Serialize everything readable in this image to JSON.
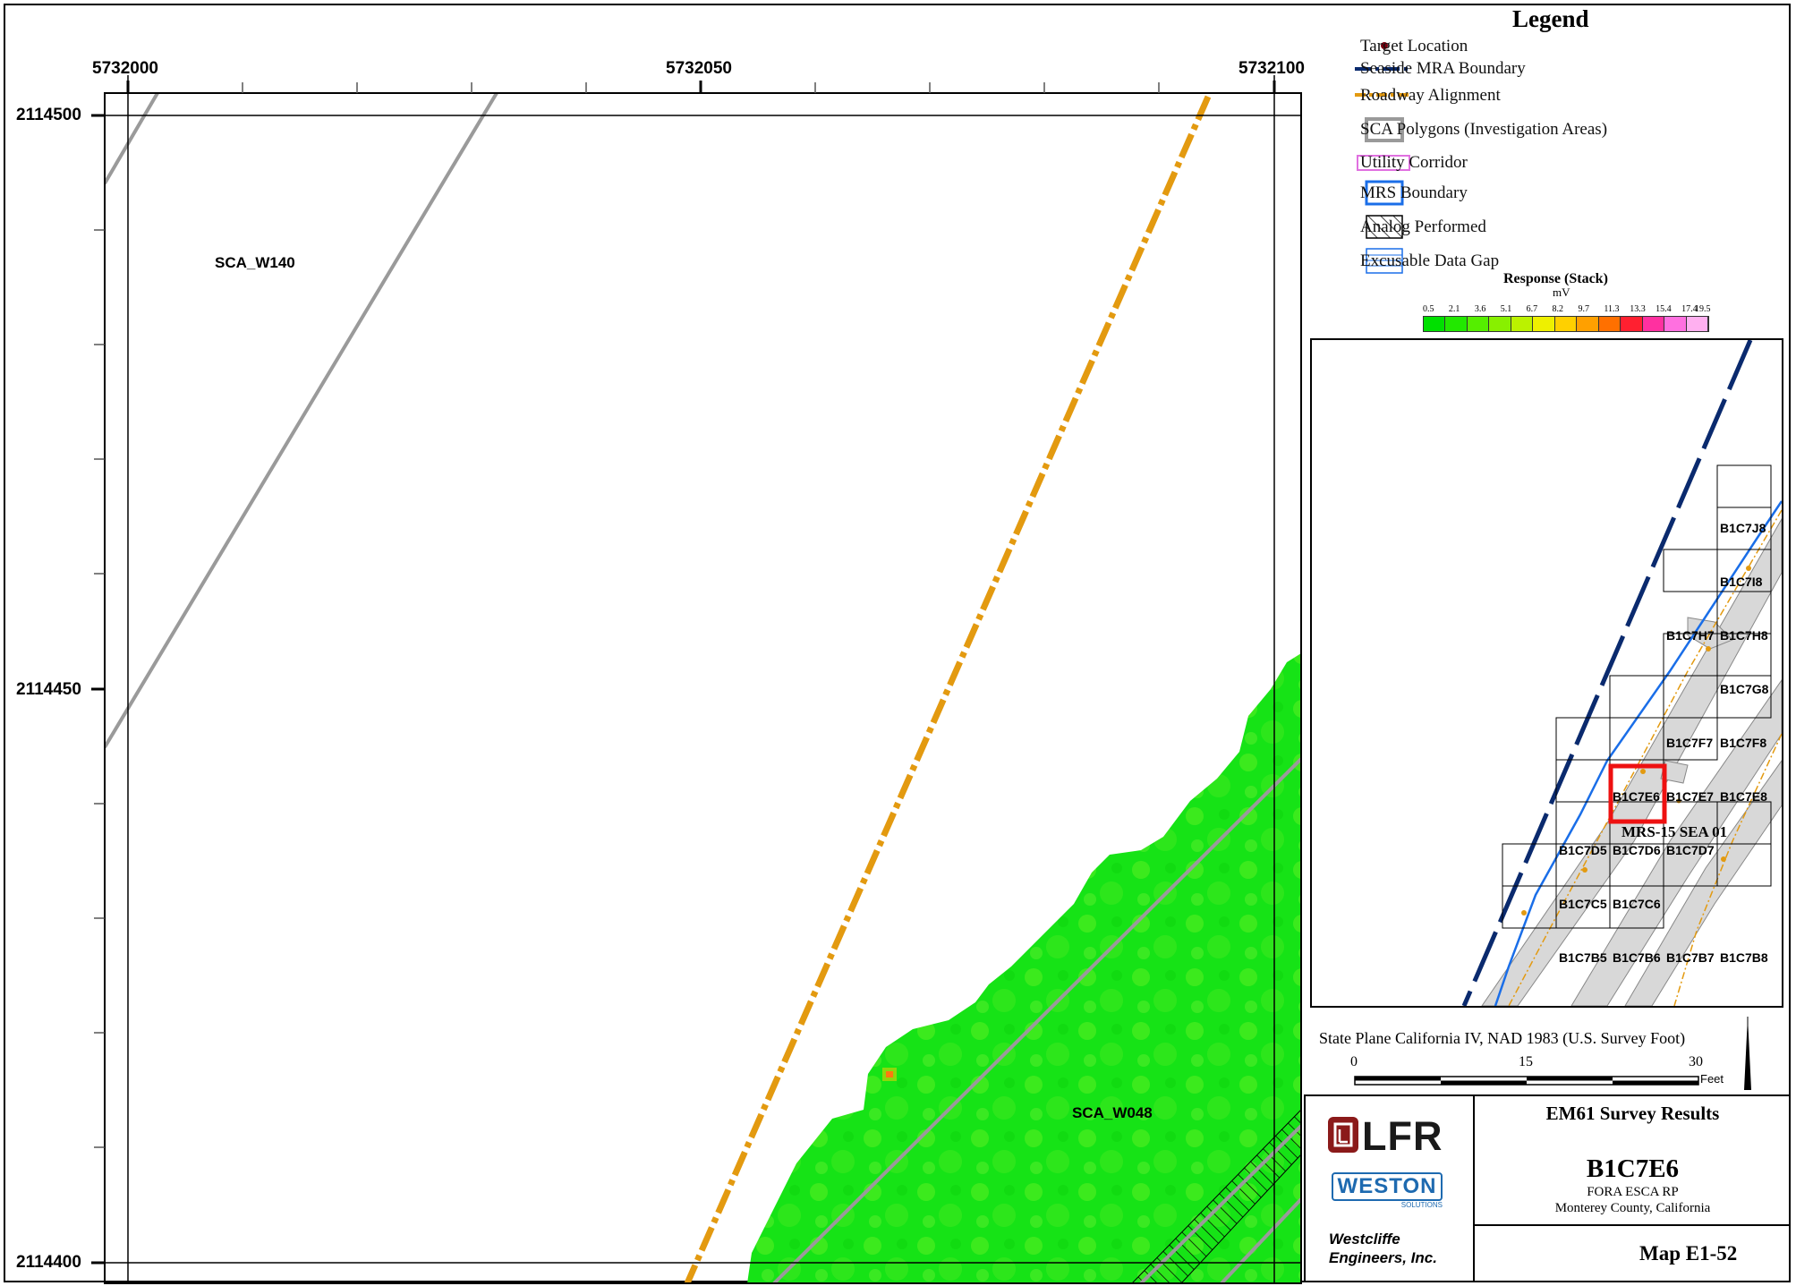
{
  "map": {
    "x_ticks": [
      "5732000",
      "5732050",
      "5732100"
    ],
    "y_ticks": [
      "2114500",
      "2114450",
      "2114400"
    ],
    "labels": {
      "sca_w140": "SCA_W140",
      "sca_w048": "SCA_W048"
    }
  },
  "legend": {
    "title": "Legend",
    "items": [
      {
        "label": "Target Location",
        "icon": "target-dot-icon"
      },
      {
        "label": "Seaside MRA Boundary",
        "icon": "dash-dot-line-icon"
      },
      {
        "label": "Roadway Alignment",
        "icon": "orange-dash-line-icon"
      },
      {
        "label": "SCA Polygons (Investigation Areas)",
        "icon": "gray-box-icon"
      },
      {
        "label": "Utility Corridor",
        "icon": "pink-box-icon"
      },
      {
        "label": "MRS Boundary",
        "icon": "blue-box-icon"
      },
      {
        "label": "Analog Performed",
        "icon": "hatched-box-icon"
      },
      {
        "label": "Excusable Data Gap",
        "icon": "lined-box-icon"
      }
    ],
    "response": {
      "title": "Response (Stack)",
      "unit": "mV",
      "ticks": [
        "0.5",
        "2.1",
        "3.6",
        "5.1",
        "6.7",
        "8.2",
        "9.7",
        "11.3",
        "13.3",
        "15.4",
        "17.4",
        "19.5"
      ],
      "colors": [
        "#00e000",
        "#22e800",
        "#55ee00",
        "#88f000",
        "#bbf200",
        "#eef000",
        "#ffd000",
        "#ffa000",
        "#ff7000",
        "#ff2030",
        "#ff30a0",
        "#ff70e0",
        "#ffb0f0"
      ]
    }
  },
  "inset": {
    "cells": [
      "B1C7J8",
      "B1C7I8",
      "B1C7H7",
      "B1C7H8",
      "B1C7G8",
      "B1C7F7",
      "B1C7F8",
      "B1C7E6",
      "B1C7E7",
      "B1C7E8",
      "B1C7D5",
      "B1C7D6",
      "B1C7D7",
      "B1C7C5",
      "B1C7C6",
      "B1C7B5",
      "B1C7B6",
      "B1C7B7",
      "B1C7B8"
    ],
    "mrs_label": "MRS-15 SEA 01",
    "highlighted": "B1C7E6"
  },
  "projection": "State Plane California IV, NAD 1983 (U.S. Survey Foot)",
  "scale": {
    "ticks": [
      "0",
      "15",
      "30"
    ],
    "unit": "Feet"
  },
  "title_block": {
    "heading": "EM61 Survey Results",
    "id": "B1C7E6",
    "project": "FORA ESCA RP",
    "location": "Monterey County, California",
    "map_number": "Map E1-52",
    "logo1": "LFR",
    "logo2": "WESTON",
    "logo2_sub": "SOLUTIONS",
    "firm_line1": "Westcliffe",
    "firm_line2": "Engineers, Inc."
  }
}
